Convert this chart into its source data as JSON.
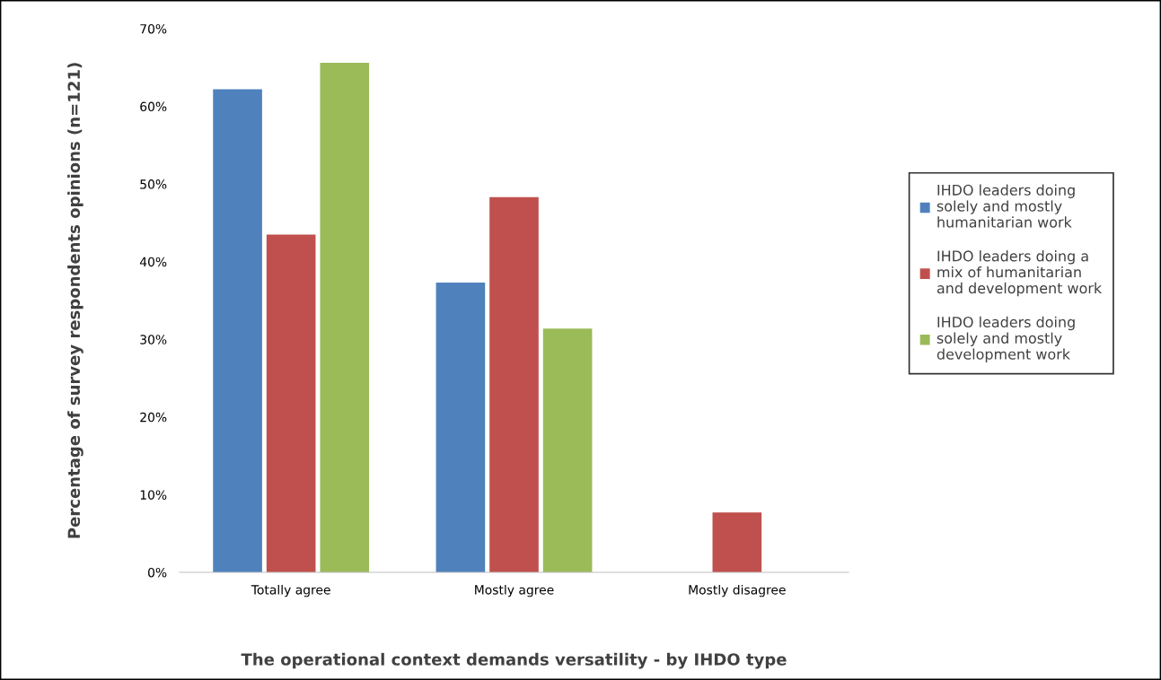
{
  "chart_data": {
    "type": "bar",
    "xlabel": "The operational context demands versatility - by IHDO type",
    "ylabel": "Percentage of survey respondents opinions (n=121)",
    "categories": [
      "Totally agree",
      "Mostly agree",
      "Mostly disagree"
    ],
    "series": [
      {
        "name": "IHDO leaders doing solely and mostly humanitarian work",
        "color": "#4f81bd",
        "values": [
          62.2,
          37.3,
          0
        ]
      },
      {
        "name": "IHDO leaders doing a mix of humanitarian and development work",
        "color": "#c0504d",
        "values": [
          43.5,
          48.3,
          7.7
        ]
      },
      {
        "name": "IHDO leaders doing solely and mostly development work",
        "color": "#9bbb59",
        "values": [
          65.6,
          31.4,
          0
        ]
      }
    ],
    "ylim": [
      0,
      70
    ],
    "yticks": [
      {
        "value": 0,
        "label": "0%"
      },
      {
        "value": 10,
        "label": "10%"
      },
      {
        "value": 20,
        "label": "20%"
      },
      {
        "value": 30,
        "label": "30%"
      },
      {
        "value": 40,
        "label": "40%"
      },
      {
        "value": 50,
        "label": "50%"
      },
      {
        "value": 60,
        "label": "60%"
      },
      {
        "value": 70,
        "label": "70%"
      }
    ],
    "grid": false,
    "legend": "right"
  }
}
